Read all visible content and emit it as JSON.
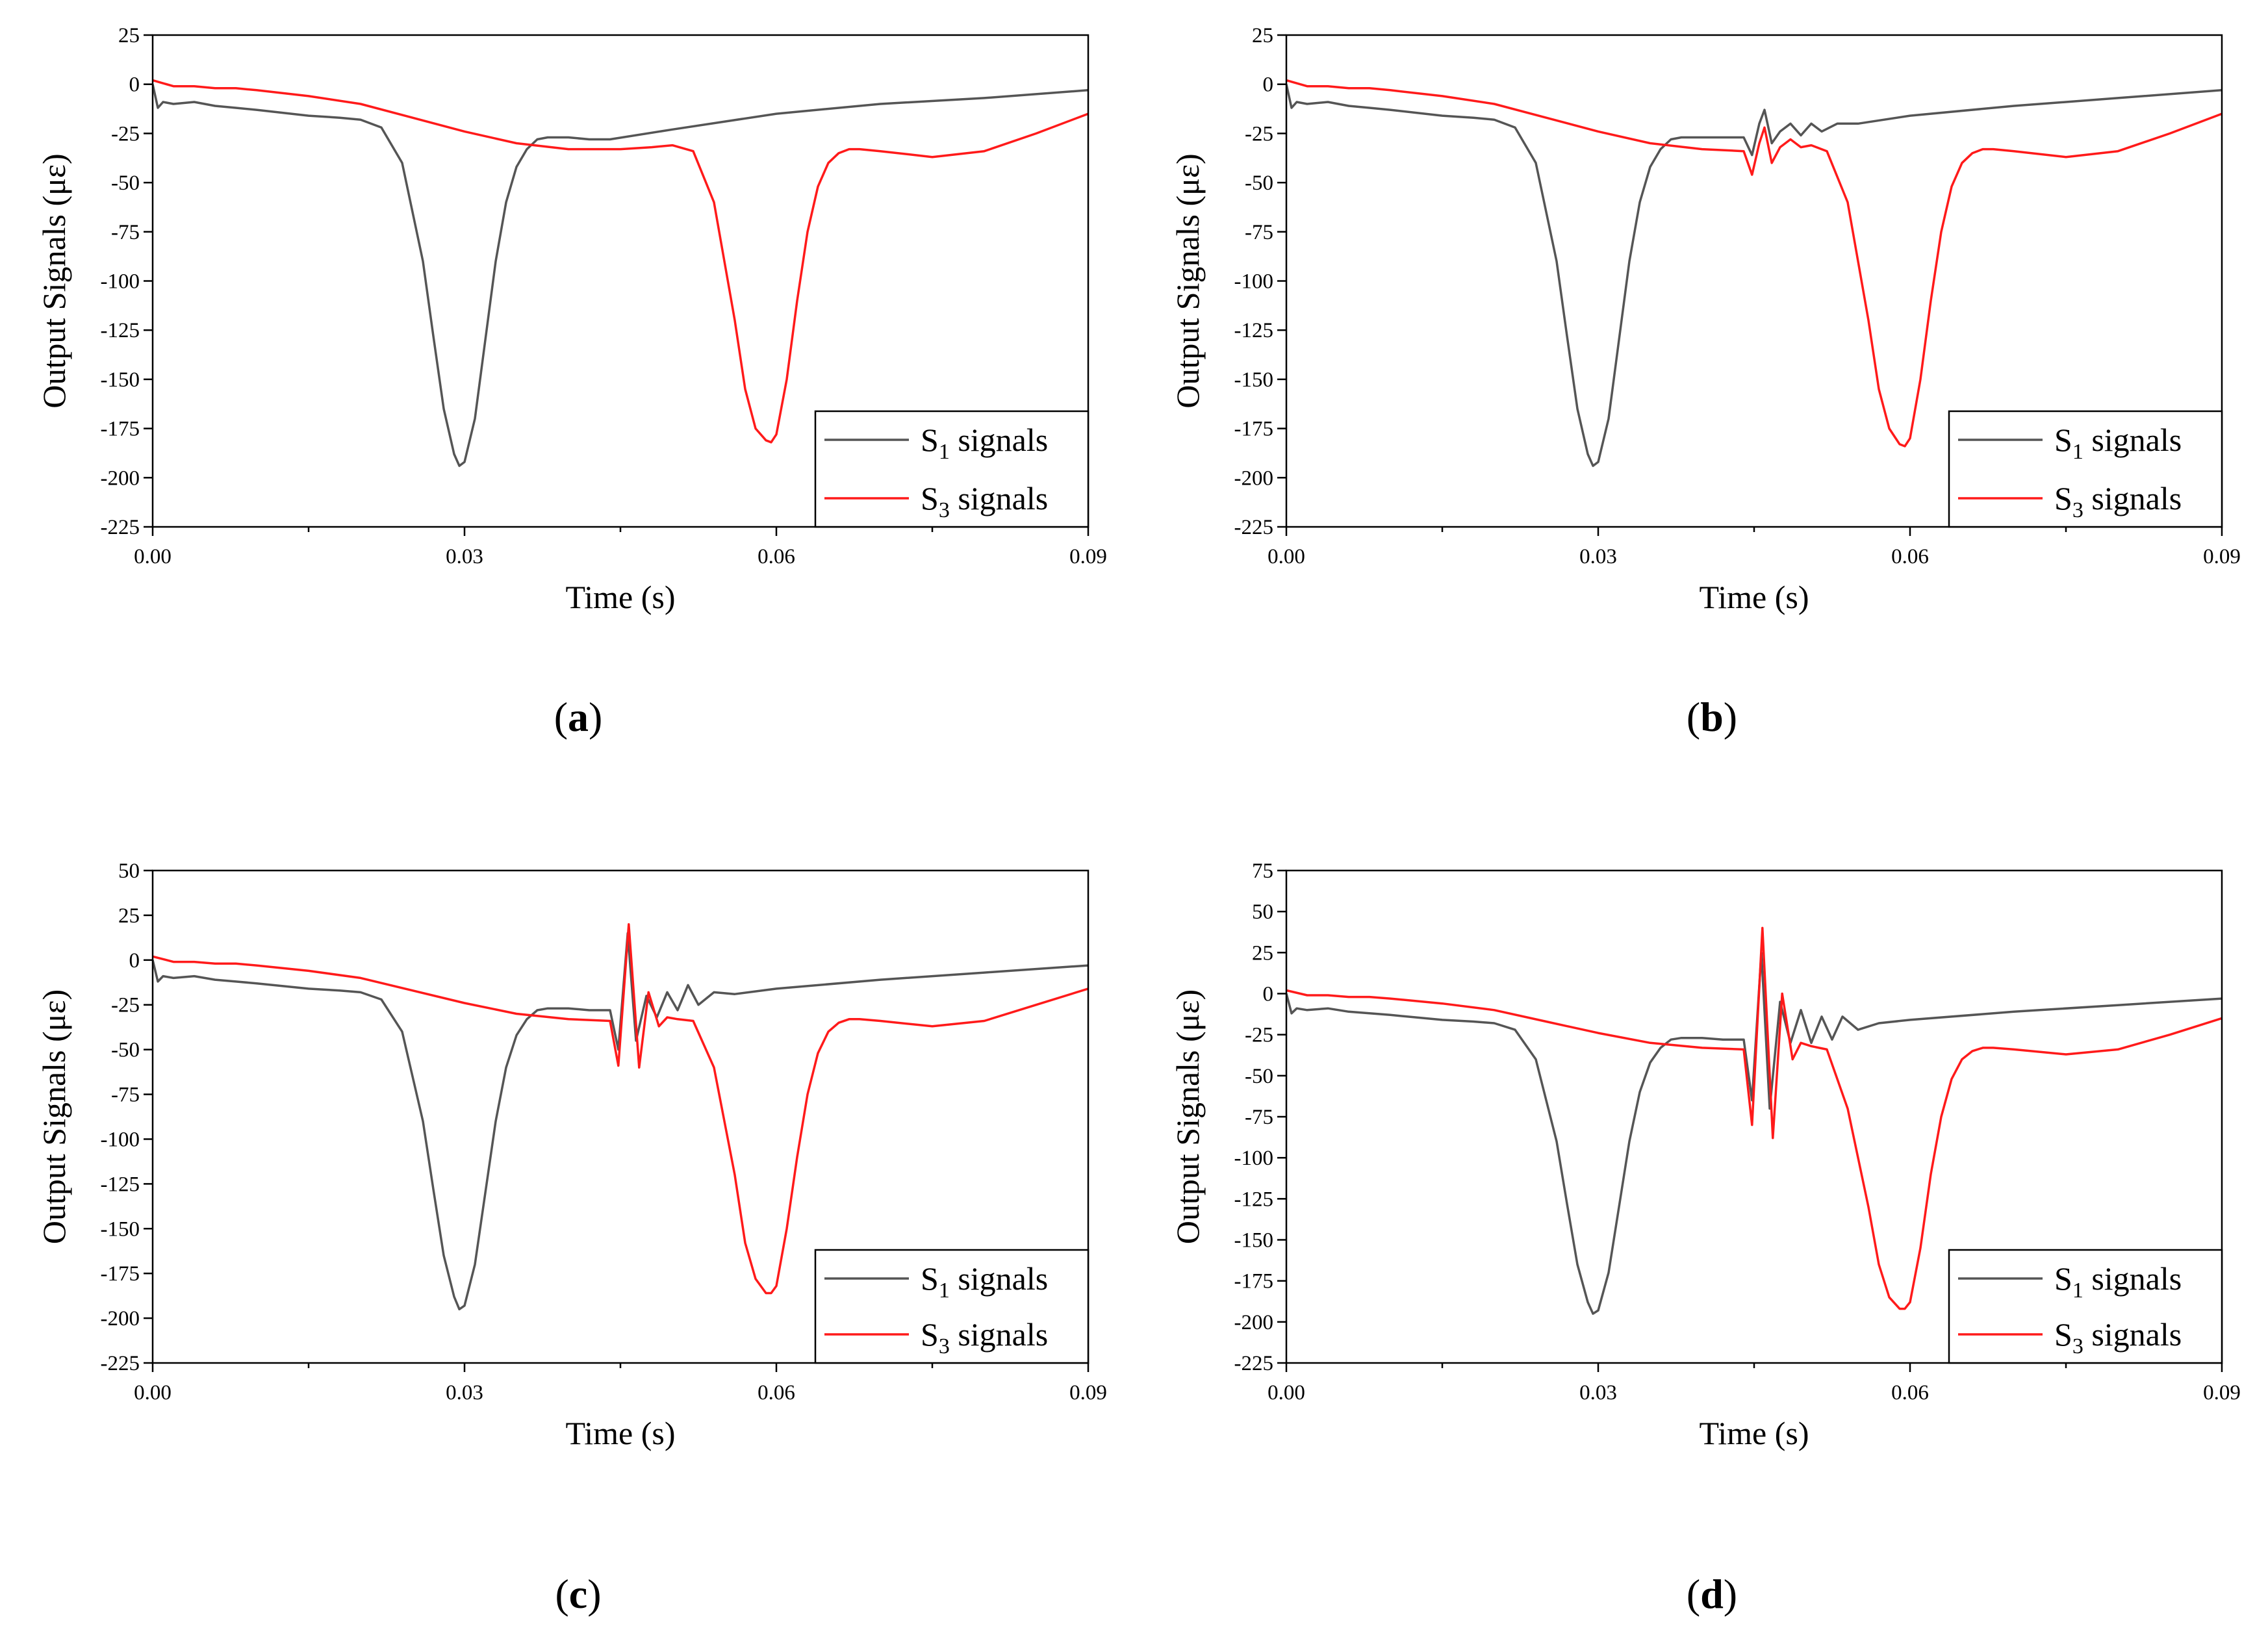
{
  "figure": {
    "colors": {
      "s1": "#555555",
      "s3": "#ff1a1a",
      "axis": "#000000"
    }
  },
  "chart_data": [
    {
      "type": "line",
      "panel_label": "a",
      "xlabel": "Time (s)",
      "ylabel": "Output Signals (με)",
      "xlim": [
        0,
        0.09
      ],
      "ylim": [
        -225,
        25
      ],
      "xticks": [
        0.0,
        0.03,
        0.06,
        0.09
      ],
      "xtick_labels": [
        "0.00",
        "0.03",
        "0.06",
        "0.09"
      ],
      "yticks": [
        25,
        0,
        -25,
        -50,
        -75,
        -100,
        -125,
        -150,
        -175,
        -200,
        -225
      ],
      "legend_position": "bottom-right",
      "series": [
        {
          "name_base": "S",
          "name_sub": "1",
          "name_rest": " signals",
          "color_key": "s1",
          "x": [
            0,
            0.0005,
            0.001,
            0.002,
            0.004,
            0.006,
            0.008,
            0.01,
            0.015,
            0.018,
            0.02,
            0.022,
            0.024,
            0.026,
            0.027,
            0.028,
            0.029,
            0.0295,
            0.03,
            0.031,
            0.032,
            0.033,
            0.034,
            0.035,
            0.036,
            0.037,
            0.038,
            0.04,
            0.042,
            0.044,
            0.05,
            0.06,
            0.07,
            0.08,
            0.09
          ],
          "y": [
            0,
            -12,
            -9,
            -10,
            -9,
            -11,
            -12,
            -13,
            -16,
            -17,
            -18,
            -22,
            -40,
            -90,
            -128,
            -165,
            -188,
            -194,
            -192,
            -170,
            -130,
            -90,
            -60,
            -42,
            -33,
            -28,
            -27,
            -27,
            -28,
            -28,
            -23,
            -15,
            -10,
            -7,
            -3
          ]
        },
        {
          "name_base": "S",
          "name_sub": "3",
          "name_rest": " signals",
          "color_key": "s3",
          "x": [
            0,
            0.002,
            0.004,
            0.006,
            0.008,
            0.01,
            0.015,
            0.02,
            0.025,
            0.03,
            0.035,
            0.04,
            0.045,
            0.048,
            0.05,
            0.052,
            0.054,
            0.056,
            0.057,
            0.058,
            0.059,
            0.0595,
            0.06,
            0.061,
            0.062,
            0.063,
            0.064,
            0.065,
            0.066,
            0.067,
            0.068,
            0.07,
            0.075,
            0.08,
            0.085,
            0.09
          ],
          "y": [
            2,
            -1,
            -1,
            -2,
            -2,
            -3,
            -6,
            -10,
            -17,
            -24,
            -30,
            -33,
            -33,
            -32,
            -31,
            -34,
            -60,
            -120,
            -155,
            -175,
            -181,
            -182,
            -178,
            -150,
            -110,
            -75,
            -52,
            -40,
            -35,
            -33,
            -33,
            -34,
            -37,
            -34,
            -25,
            -15
          ]
        }
      ]
    },
    {
      "type": "line",
      "panel_label": "b",
      "xlabel": "Time (s)",
      "ylabel": "Output Signals (με)",
      "xlim": [
        0,
        0.09
      ],
      "ylim": [
        -225,
        25
      ],
      "xticks": [
        0.0,
        0.03,
        0.06,
        0.09
      ],
      "xtick_labels": [
        "0.00",
        "0.03",
        "0.06",
        "0.09"
      ],
      "yticks": [
        25,
        0,
        -25,
        -50,
        -75,
        -100,
        -125,
        -150,
        -175,
        -200,
        -225
      ],
      "legend_position": "bottom-right",
      "series": [
        {
          "name_base": "S",
          "name_sub": "1",
          "name_rest": " signals",
          "color_key": "s1",
          "x": [
            0,
            0.0005,
            0.001,
            0.002,
            0.004,
            0.006,
            0.008,
            0.01,
            0.015,
            0.018,
            0.02,
            0.022,
            0.024,
            0.026,
            0.027,
            0.028,
            0.029,
            0.0295,
            0.03,
            0.031,
            0.032,
            0.033,
            0.034,
            0.035,
            0.036,
            0.037,
            0.038,
            0.04,
            0.042,
            0.044,
            0.0448,
            0.0455,
            0.046,
            0.0467,
            0.0475,
            0.0485,
            0.0495,
            0.0505,
            0.0515,
            0.053,
            0.055,
            0.06,
            0.07,
            0.08,
            0.09
          ],
          "y": [
            0,
            -12,
            -9,
            -10,
            -9,
            -11,
            -12,
            -13,
            -16,
            -17,
            -18,
            -22,
            -40,
            -90,
            -128,
            -165,
            -188,
            -194,
            -192,
            -170,
            -130,
            -90,
            -60,
            -42,
            -33,
            -28,
            -27,
            -27,
            -27,
            -27,
            -36,
            -20,
            -13,
            -30,
            -24,
            -20,
            -26,
            -20,
            -24,
            -20,
            -20,
            -16,
            -11,
            -7,
            -3
          ]
        },
        {
          "name_base": "S",
          "name_sub": "3",
          "name_rest": " signals",
          "color_key": "s3",
          "x": [
            0,
            0.002,
            0.004,
            0.006,
            0.008,
            0.01,
            0.015,
            0.02,
            0.025,
            0.03,
            0.035,
            0.04,
            0.044,
            0.0448,
            0.0455,
            0.046,
            0.0467,
            0.0475,
            0.0485,
            0.0495,
            0.0505,
            0.052,
            0.054,
            0.056,
            0.057,
            0.058,
            0.059,
            0.0595,
            0.06,
            0.061,
            0.062,
            0.063,
            0.064,
            0.065,
            0.066,
            0.067,
            0.068,
            0.07,
            0.075,
            0.08,
            0.085,
            0.09
          ],
          "y": [
            2,
            -1,
            -1,
            -2,
            -2,
            -3,
            -6,
            -10,
            -17,
            -24,
            -30,
            -33,
            -34,
            -46,
            -30,
            -22,
            -40,
            -32,
            -28,
            -32,
            -31,
            -34,
            -60,
            -120,
            -155,
            -175,
            -183,
            -184,
            -180,
            -150,
            -110,
            -75,
            -52,
            -40,
            -35,
            -33,
            -33,
            -34,
            -37,
            -34,
            -25,
            -15
          ]
        }
      ]
    },
    {
      "type": "line",
      "panel_label": "c",
      "xlabel": "Time (s)",
      "ylabel": "Output Signals (με)",
      "xlim": [
        0,
        0.09
      ],
      "ylim": [
        -225,
        50
      ],
      "xticks": [
        0.0,
        0.03,
        0.06,
        0.09
      ],
      "xtick_labels": [
        "0.00",
        "0.03",
        "0.06",
        "0.09"
      ],
      "yticks": [
        50,
        25,
        0,
        -25,
        -50,
        -75,
        -100,
        -125,
        -150,
        -175,
        -200,
        -225
      ],
      "legend_position": "bottom-right",
      "series": [
        {
          "name_base": "S",
          "name_sub": "1",
          "name_rest": " signals",
          "color_key": "s1",
          "x": [
            0,
            0.0005,
            0.001,
            0.002,
            0.004,
            0.006,
            0.008,
            0.01,
            0.015,
            0.018,
            0.02,
            0.022,
            0.024,
            0.026,
            0.027,
            0.028,
            0.029,
            0.0295,
            0.03,
            0.031,
            0.032,
            0.033,
            0.034,
            0.035,
            0.036,
            0.037,
            0.038,
            0.04,
            0.042,
            0.044,
            0.0448,
            0.0457,
            0.0465,
            0.0475,
            0.0485,
            0.0495,
            0.0505,
            0.0515,
            0.0525,
            0.054,
            0.056,
            0.06,
            0.07,
            0.08,
            0.09
          ],
          "y": [
            0,
            -12,
            -9,
            -10,
            -9,
            -11,
            -12,
            -13,
            -16,
            -17,
            -18,
            -22,
            -40,
            -90,
            -128,
            -165,
            -188,
            -195,
            -193,
            -170,
            -130,
            -90,
            -60,
            -42,
            -33,
            -28,
            -27,
            -27,
            -28,
            -28,
            -50,
            15,
            -45,
            -20,
            -32,
            -18,
            -28,
            -14,
            -25,
            -18,
            -19,
            -16,
            -11,
            -7,
            -3
          ]
        },
        {
          "name_base": "S",
          "name_sub": "3",
          "name_rest": " signals",
          "color_key": "s3",
          "x": [
            0,
            0.002,
            0.004,
            0.006,
            0.008,
            0.01,
            0.015,
            0.02,
            0.025,
            0.03,
            0.035,
            0.04,
            0.044,
            0.0448,
            0.0458,
            0.0468,
            0.0477,
            0.0487,
            0.0495,
            0.0505,
            0.052,
            0.054,
            0.056,
            0.057,
            0.058,
            0.059,
            0.0595,
            0.06,
            0.061,
            0.062,
            0.063,
            0.064,
            0.065,
            0.066,
            0.067,
            0.068,
            0.07,
            0.075,
            0.08,
            0.085,
            0.09
          ],
          "y": [
            2,
            -1,
            -1,
            -2,
            -2,
            -3,
            -6,
            -10,
            -17,
            -24,
            -30,
            -33,
            -34,
            -59,
            20,
            -60,
            -18,
            -37,
            -32,
            -33,
            -34,
            -60,
            -120,
            -158,
            -178,
            -186,
            -186,
            -182,
            -150,
            -110,
            -75,
            -52,
            -40,
            -35,
            -33,
            -33,
            -34,
            -37,
            -34,
            -25,
            -16
          ]
        }
      ]
    },
    {
      "type": "line",
      "panel_label": "d",
      "xlabel": "Time (s)",
      "ylabel": "Output Signals (με)",
      "xlim": [
        0,
        0.09
      ],
      "ylim": [
        -225,
        75
      ],
      "xticks": [
        0.0,
        0.03,
        0.06,
        0.09
      ],
      "xtick_labels": [
        "0.00",
        "0.03",
        "0.06",
        "0.09"
      ],
      "yticks": [
        75,
        50,
        25,
        0,
        -25,
        -50,
        -75,
        -100,
        -125,
        -150,
        -175,
        -200,
        -225
      ],
      "legend_position": "bottom-right",
      "series": [
        {
          "name_base": "S",
          "name_sub": "1",
          "name_rest": " signals",
          "color_key": "s1",
          "x": [
            0,
            0.0005,
            0.001,
            0.002,
            0.004,
            0.006,
            0.008,
            0.01,
            0.015,
            0.018,
            0.02,
            0.022,
            0.024,
            0.026,
            0.027,
            0.028,
            0.029,
            0.0295,
            0.03,
            0.031,
            0.032,
            0.033,
            0.034,
            0.035,
            0.036,
            0.037,
            0.038,
            0.04,
            0.042,
            0.044,
            0.0448,
            0.0457,
            0.0465,
            0.0475,
            0.0485,
            0.0495,
            0.0505,
            0.0515,
            0.0525,
            0.0535,
            0.055,
            0.057,
            0.06,
            0.07,
            0.08,
            0.09
          ],
          "y": [
            0,
            -12,
            -9,
            -10,
            -9,
            -11,
            -12,
            -13,
            -16,
            -17,
            -18,
            -22,
            -40,
            -90,
            -128,
            -165,
            -188,
            -195,
            -193,
            -170,
            -130,
            -90,
            -60,
            -42,
            -33,
            -28,
            -27,
            -27,
            -28,
            -28,
            -65,
            25,
            -70,
            -5,
            -30,
            -10,
            -30,
            -14,
            -28,
            -14,
            -22,
            -18,
            -16,
            -11,
            -7,
            -3
          ]
        },
        {
          "name_base": "S",
          "name_sub": "3",
          "name_rest": " signals",
          "color_key": "s3",
          "x": [
            0,
            0.002,
            0.004,
            0.006,
            0.008,
            0.01,
            0.015,
            0.02,
            0.025,
            0.03,
            0.035,
            0.04,
            0.044,
            0.0448,
            0.0458,
            0.0468,
            0.0477,
            0.0487,
            0.0495,
            0.0505,
            0.052,
            0.054,
            0.056,
            0.057,
            0.058,
            0.059,
            0.0595,
            0.06,
            0.061,
            0.062,
            0.063,
            0.064,
            0.065,
            0.066,
            0.067,
            0.068,
            0.07,
            0.075,
            0.08,
            0.085,
            0.09
          ],
          "y": [
            2,
            -1,
            -1,
            -2,
            -2,
            -3,
            -6,
            -10,
            -17,
            -24,
            -30,
            -33,
            -34,
            -80,
            40,
            -88,
            0,
            -40,
            -30,
            -32,
            -34,
            -70,
            -130,
            -165,
            -185,
            -192,
            -192,
            -188,
            -155,
            -110,
            -75,
            -52,
            -40,
            -35,
            -33,
            -33,
            -34,
            -37,
            -34,
            -25,
            -15
          ]
        }
      ]
    }
  ]
}
